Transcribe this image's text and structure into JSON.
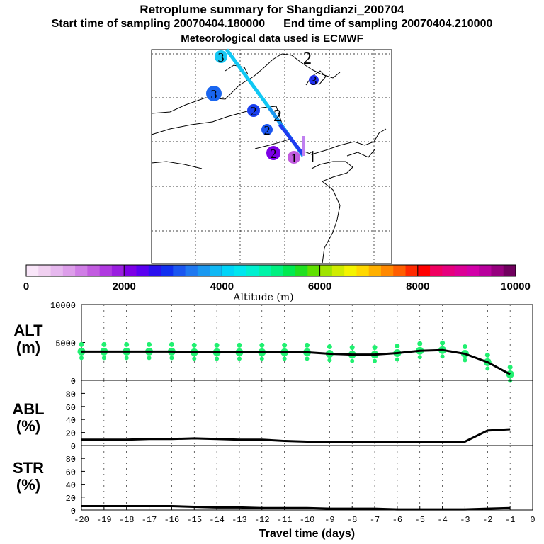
{
  "title": "Retroplume summary for Shangdianzi_200704",
  "start_label": "Start time of sampling 20070404.180000",
  "end_label": "End time of sampling 20070404.210000",
  "met_label": "Meteorological data used is ECMWF",
  "colorbar": {
    "label": "Altitude (m)",
    "ticks": [
      "0",
      "2000",
      "4000",
      "6000",
      "8000",
      "10000"
    ],
    "colors": [
      "#f9e6f9",
      "#f0d0f0",
      "#e6b8ee",
      "#dd9eea",
      "#d07ee6",
      "#c25ce0",
      "#b03ae0",
      "#9a1ee0",
      "#7c00e6",
      "#5a00f0",
      "#2a10ee",
      "#1030f0",
      "#1a56f0",
      "#1f78f0",
      "#1a98f0",
      "#10b8f4",
      "#00d4f8",
      "#00e6ef",
      "#00f0d0",
      "#00f4a8",
      "#00f080",
      "#00ea50",
      "#20e020",
      "#60e000",
      "#a0e400",
      "#d0ec00",
      "#f4f400",
      "#ffd800",
      "#ffb000",
      "#ff8800",
      "#ff5e00",
      "#ff2a00",
      "#ff0000",
      "#f00060",
      "#e6007e",
      "#dc0096",
      "#d200a8",
      "#b8009c",
      "#96007e",
      "#70005e"
    ]
  },
  "map": {
    "cluster_labels": [
      "3",
      "2",
      "3",
      "3",
      "2",
      "2",
      "2",
      "2",
      "1",
      "1"
    ],
    "plume_line_colors": [
      "#1a98f0",
      "#10c8f4",
      "#1f3cf0",
      "#c080f0"
    ]
  },
  "panels": [
    {
      "title": "ALT",
      "unit": "(m)"
    },
    {
      "title": "ABL",
      "unit": "(%)"
    },
    {
      "title": "STR",
      "unit": "(%)"
    }
  ],
  "chart_data": [
    {
      "type": "line",
      "title": "ALT",
      "ylabel": "(m)",
      "xlabel": "Travel time (days)",
      "x": [
        -20,
        -19,
        -18,
        -17,
        -16,
        -15,
        -14,
        -13,
        -12,
        -11,
        -10,
        -9,
        -8,
        -7,
        -6,
        -5,
        -4,
        -3,
        -2,
        -1
      ],
      "values": [
        3800,
        3800,
        3800,
        3800,
        3800,
        3700,
        3700,
        3700,
        3700,
        3700,
        3700,
        3500,
        3400,
        3400,
        3600,
        3900,
        4000,
        3500,
        2400,
        800
      ],
      "ylim": [
        0,
        10000
      ],
      "yticks": [
        "0",
        "5000",
        "10000"
      ],
      "scatter": {
        "color": "#20f070",
        "x": [
          -20,
          -19,
          -18,
          -17,
          -16,
          -15,
          -14,
          -13,
          -12,
          -11,
          -10,
          -9,
          -8,
          -7,
          -6,
          -5,
          -4,
          -3,
          -2,
          -1
        ],
        "values": [
          3800,
          3800,
          3800,
          3800,
          3800,
          3700,
          3700,
          3700,
          3700,
          3700,
          3700,
          3500,
          3400,
          3400,
          3600,
          3900,
          4000,
          3500,
          2400,
          800
        ]
      }
    },
    {
      "type": "line",
      "title": "ABL",
      "ylabel": "(%)",
      "x": [
        -20,
        -19,
        -18,
        -17,
        -16,
        -15,
        -14,
        -13,
        -12,
        -11,
        -10,
        -9,
        -8,
        -7,
        -6,
        -5,
        -4,
        -3,
        -2,
        -1
      ],
      "values": [
        9,
        9,
        9,
        10,
        10,
        11,
        10,
        9,
        9,
        7,
        6,
        6,
        6,
        6,
        6,
        6,
        6,
        6,
        23,
        25
      ],
      "ylim": [
        0,
        100
      ],
      "yticks": [
        "0",
        "20",
        "40",
        "60",
        "80"
      ]
    },
    {
      "type": "line",
      "title": "STR",
      "ylabel": "(%)",
      "x": [
        -20,
        -19,
        -18,
        -17,
        -16,
        -15,
        -14,
        -13,
        -12,
        -11,
        -10,
        -9,
        -8,
        -7,
        -6,
        -5,
        -4,
        -3,
        -2,
        -1
      ],
      "values": [
        6,
        6,
        6,
        6,
        6,
        5,
        4,
        4,
        3,
        3,
        3,
        2,
        2,
        2,
        1,
        1,
        1,
        1,
        2,
        3
      ],
      "ylim": [
        0,
        100
      ],
      "yticks": [
        "0",
        "20",
        "40",
        "60",
        "80"
      ],
      "xticks": [
        "-20",
        "-19",
        "-18",
        "-17",
        "-16",
        "-15",
        "-14",
        "-13",
        "-12",
        "-11",
        "-10",
        "-9",
        "-8",
        "-7",
        "-6",
        "-5",
        "-4",
        "-3",
        "-2",
        "-1",
        "0"
      ],
      "xlabel": "Travel time (days)"
    }
  ]
}
